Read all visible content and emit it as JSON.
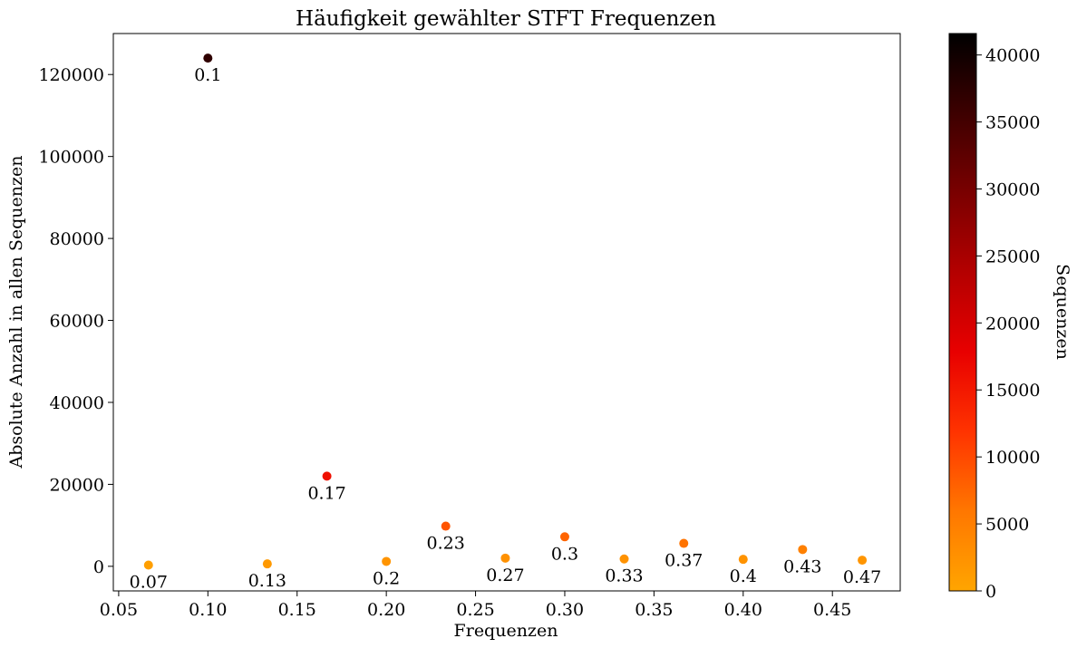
{
  "chart_data": {
    "type": "scatter",
    "title": "Häufigkeit gewählter STFT Frequenzen",
    "xlabel": "Frequenzen",
    "ylabel": "Absolute Anzahl in allen Sequenzen",
    "xlim": [
      0.047,
      0.488
    ],
    "ylim": [
      -6000,
      130000
    ],
    "x_ticks": [
      "0.05",
      "0.10",
      "0.15",
      "0.20",
      "0.25",
      "0.30",
      "0.35",
      "0.40",
      "0.45"
    ],
    "y_ticks": [
      "0",
      "20000",
      "40000",
      "60000",
      "80000",
      "100000",
      "120000"
    ],
    "colorbar": {
      "label": "Sequenzen",
      "range": [
        0,
        41600
      ],
      "ticks": [
        "0",
        "5000",
        "10000",
        "15000",
        "20000",
        "25000",
        "30000",
        "35000",
        "40000"
      ],
      "colormap": "hot_r",
      "stops": [
        "#ffa500",
        "#ff7700",
        "#ff3300",
        "#e80000",
        "#b40000",
        "#7a0000",
        "#3d0000",
        "#000000"
      ]
    },
    "grid": false,
    "points": [
      {
        "x": 0.0667,
        "y": 300,
        "c": 800,
        "label": "0.07"
      },
      {
        "x": 0.1,
        "y": 124000,
        "c": 37000,
        "label": "0.1"
      },
      {
        "x": 0.1333,
        "y": 600,
        "c": 1500,
        "label": "0.13"
      },
      {
        "x": 0.1667,
        "y": 22000,
        "c": 16000,
        "label": "0.17"
      },
      {
        "x": 0.2,
        "y": 1200,
        "c": 2200,
        "label": "0.2"
      },
      {
        "x": 0.2333,
        "y": 9800,
        "c": 9000,
        "label": "0.23"
      },
      {
        "x": 0.2667,
        "y": 2000,
        "c": 2600,
        "label": "0.27"
      },
      {
        "x": 0.3,
        "y": 7200,
        "c": 7600,
        "label": "0.3"
      },
      {
        "x": 0.3333,
        "y": 1800,
        "c": 2400,
        "label": "0.33"
      },
      {
        "x": 0.3667,
        "y": 5600,
        "c": 6300,
        "label": "0.37"
      },
      {
        "x": 0.4,
        "y": 1700,
        "c": 2300,
        "label": "0.4"
      },
      {
        "x": 0.4333,
        "y": 4100,
        "c": 4800,
        "label": "0.43"
      },
      {
        "x": 0.4667,
        "y": 1500,
        "c": 2100,
        "label": "0.47"
      }
    ]
  }
}
